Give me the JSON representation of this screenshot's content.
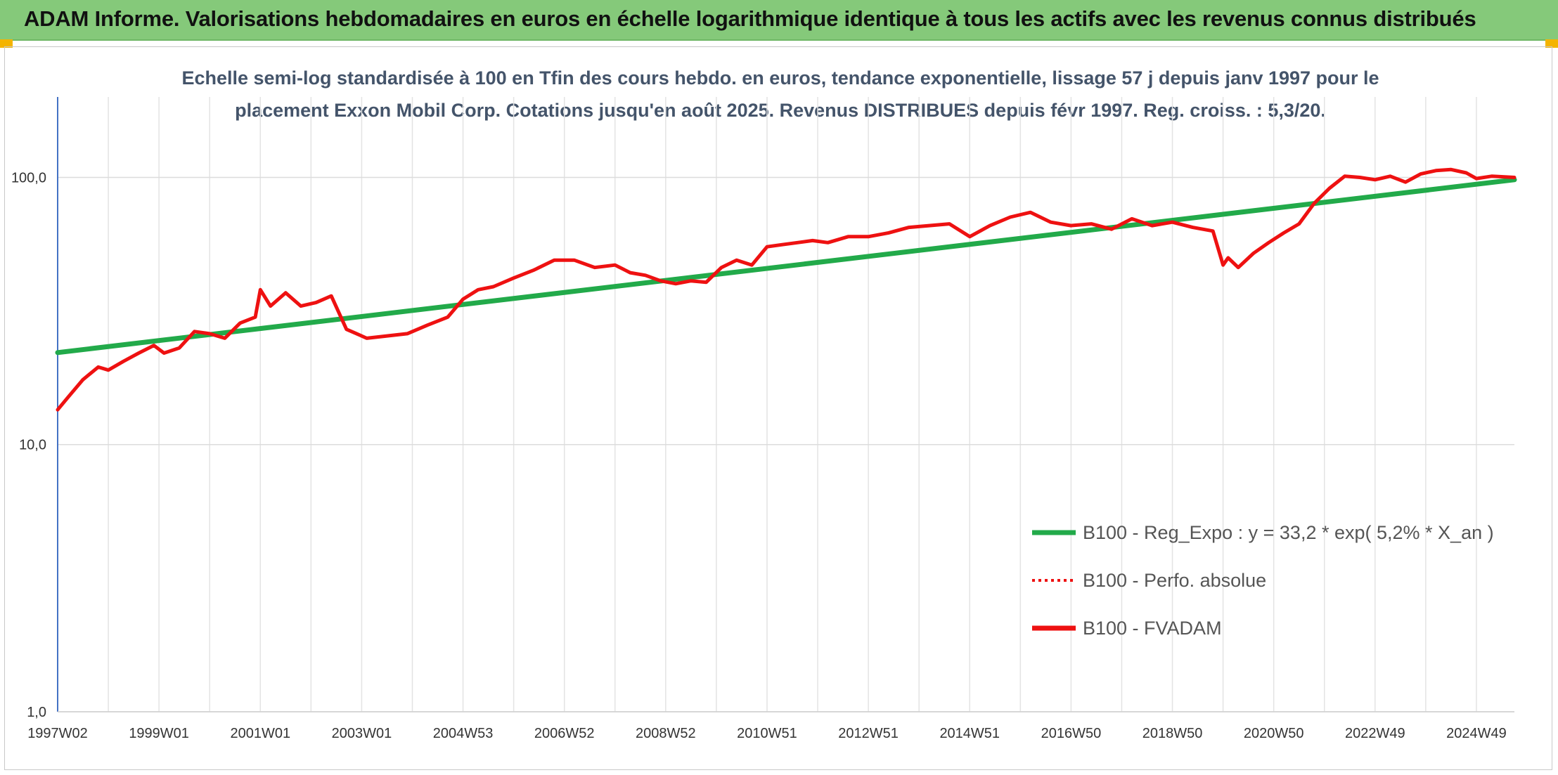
{
  "banner": {
    "title": "ADAM Informe. Valorisations hebdomadaires en euros en échelle logarithmique identique à tous les actifs avec les revenus connus distribués"
  },
  "chart_data": {
    "type": "line",
    "title_line1": "Echelle semi-log standardisée à 100 en Tfin des cours hebdo. en euros, tendance exponentielle, lissage 57 j depuis janv 1997 pour le",
    "title_line2": "placement Exxon Mobil Corp. Cotations jusqu'en août 2025. Revenus DISTRIBUES depuis févr 1997. Reg. croiss. : 5,3/20.",
    "yscale": "log",
    "ylim": [
      1,
      200
    ],
    "y_ticks": [
      1,
      10,
      100
    ],
    "y_tick_labels": [
      "1,0",
      "10,0",
      "100,0"
    ],
    "xlim": [
      1997.0,
      2025.75
    ],
    "x_tick_labels": [
      "1997W02",
      "1999W01",
      "2001W01",
      "2003W01",
      "2004W53",
      "2006W52",
      "2008W52",
      "2010W51",
      "2012W51",
      "2014W51",
      "2016W50",
      "2018W50",
      "2020W50",
      "2022W49",
      "2024W49"
    ],
    "x_tick_years": [
      1997.0,
      1999.0,
      2001.0,
      2003.0,
      2005.0,
      2007.0,
      2009.0,
      2011.0,
      2013.0,
      2015.0,
      2017.0,
      2019.0,
      2021.0,
      2023.0,
      2025.0
    ],
    "grid": true,
    "legend_position": "bottom-right",
    "series": [
      {
        "name": "B100 - Reg_Expo : y = 33,2 * exp( 5,2% *  X_an )",
        "color": "#22aa4a",
        "style": "solid",
        "x": [
          1997.0,
          2025.75
        ],
        "y": [
          22.1,
          98.0
        ]
      },
      {
        "name": "B100 - Perfo. absolue",
        "color": "#ee1111",
        "style": "dotted",
        "x": [],
        "y": []
      },
      {
        "name": "B100 - FVADAM",
        "color": "#ee1111",
        "style": "solid",
        "x": [
          1997.0,
          1997.2,
          1997.5,
          1997.8,
          1998.0,
          1998.3,
          1998.6,
          1998.9,
          1999.1,
          1999.4,
          1999.7,
          2000.0,
          2000.3,
          2000.6,
          2000.9,
          2001.0,
          2001.2,
          2001.5,
          2001.8,
          2002.1,
          2002.4,
          2002.7,
          2002.9,
          2003.1,
          2003.5,
          2003.9,
          2004.3,
          2004.7,
          2005.0,
          2005.3,
          2005.6,
          2006.0,
          2006.4,
          2006.8,
          2007.2,
          2007.6,
          2008.0,
          2008.3,
          2008.6,
          2008.9,
          2009.2,
          2009.5,
          2009.8,
          2010.1,
          2010.4,
          2010.7,
          2011.0,
          2011.3,
          2011.6,
          2011.9,
          2012.2,
          2012.6,
          2013.0,
          2013.4,
          2013.8,
          2014.2,
          2014.6,
          2015.0,
          2015.4,
          2015.8,
          2016.2,
          2016.6,
          2017.0,
          2017.4,
          2017.8,
          2018.2,
          2018.6,
          2019.0,
          2019.4,
          2019.8,
          2020.0,
          2020.1,
          2020.3,
          2020.6,
          2020.9,
          2021.2,
          2021.5,
          2021.8,
          2022.1,
          2022.4,
          2022.7,
          2023.0,
          2023.3,
          2023.6,
          2023.9,
          2024.2,
          2024.5,
          2024.8,
          2025.0,
          2025.3,
          2025.75
        ],
        "y": [
          13.5,
          15.0,
          17.5,
          19.5,
          19.0,
          20.5,
          22.0,
          23.5,
          22.0,
          23.0,
          26.5,
          26.0,
          25.0,
          28.5,
          30.0,
          38.0,
          33.0,
          37.0,
          33.0,
          34.0,
          36.0,
          27.0,
          26.0,
          25.0,
          25.5,
          26.0,
          28.0,
          30.0,
          35.0,
          38.0,
          39.0,
          42.0,
          45.0,
          49.0,
          49.0,
          46.0,
          47.0,
          44.0,
          43.0,
          41.0,
          40.0,
          41.0,
          40.5,
          46.0,
          49.0,
          47.0,
          55.0,
          56.0,
          57.0,
          58.0,
          57.0,
          60.0,
          60.0,
          62.0,
          65.0,
          66.0,
          67.0,
          60.0,
          66.0,
          71.0,
          74.0,
          68.0,
          66.0,
          67.0,
          64.0,
          70.0,
          66.0,
          68.0,
          65.0,
          63.0,
          47.0,
          50.0,
          46.0,
          52.0,
          57.0,
          62.0,
          67.0,
          80.0,
          91.0,
          101.0,
          100.0,
          98.0,
          101.0,
          96.0,
          103.0,
          106.0,
          107.0,
          104.0,
          99.0,
          101.0,
          100.0
        ]
      }
    ]
  }
}
